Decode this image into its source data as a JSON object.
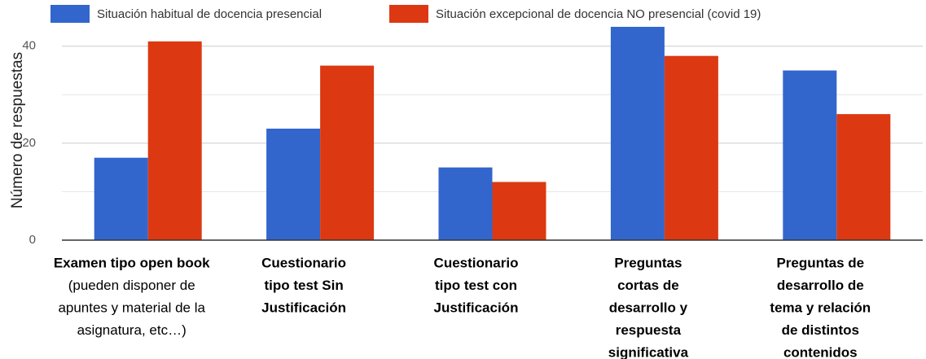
{
  "chart_data": {
    "type": "bar",
    "y_label": "Número de respuestas",
    "categories": [
      [
        "Examen tipo open book",
        "(pueden disponer de",
        "apuntes y material de la",
        "asignatura, etc…)"
      ],
      [
        "Cuestionario",
        "tipo test Sin",
        "Justificación"
      ],
      [
        "Cuestionario",
        "tipo test con",
        "Justificación"
      ],
      [
        "Preguntas",
        "cortas de",
        "desarrollo y",
        "respuesta",
        "significativa"
      ],
      [
        "Preguntas de",
        "desarrollo de",
        "tema y relación",
        "de distintos",
        "contenidos"
      ]
    ],
    "series": [
      {
        "name": "Situación habitual de docencia presencial",
        "color": "#3366cc",
        "values": [
          17,
          23,
          15,
          44,
          35
        ]
      },
      {
        "name": "Situación excepcional de docencia NO presencial (covid 19)",
        "color": "#dc3912",
        "values": [
          41,
          36,
          12,
          38,
          26
        ]
      }
    ],
    "ylim": [
      0,
      45
    ],
    "yticks": [
      0,
      20,
      40
    ],
    "minor_yticks": [
      10,
      30
    ],
    "grid": true
  }
}
